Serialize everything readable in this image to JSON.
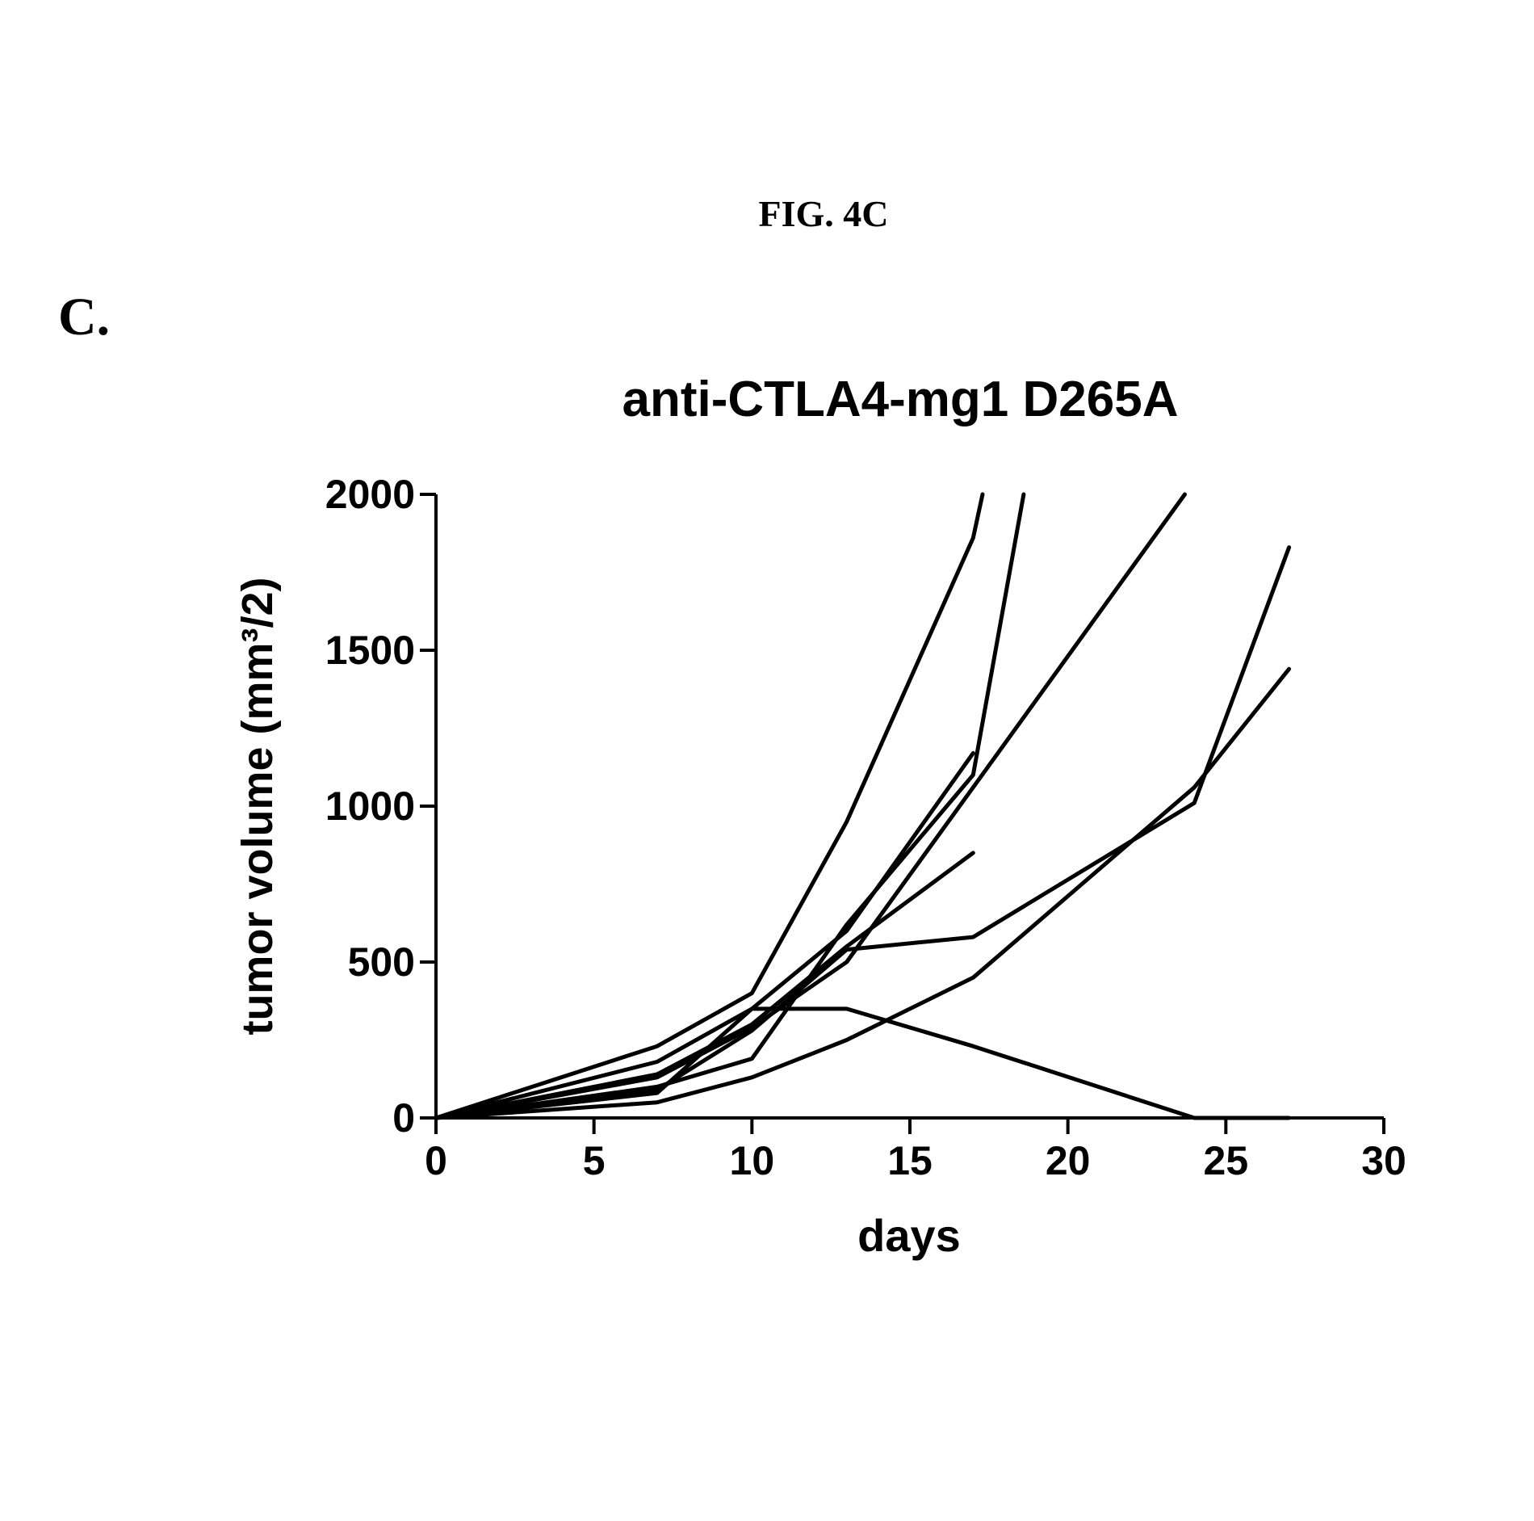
{
  "figure_label": "FIG. 4C",
  "panel_letter": "C.",
  "chart_data": {
    "type": "line",
    "title": "anti-CTLA4-mg1 D265A",
    "xlabel": "days",
    "ylabel": "tumor volume (mm³/2)",
    "xlim": [
      0,
      30
    ],
    "ylim": [
      0,
      2000
    ],
    "xticks": [
      0,
      5,
      10,
      15,
      20,
      25,
      30
    ],
    "yticks": [
      0,
      500,
      1000,
      1500,
      2000
    ],
    "grid": false,
    "line_color": "#000000",
    "series": [
      {
        "x": [
          0,
          7,
          10,
          13,
          17,
          17.3
        ],
        "y": [
          0,
          230,
          400,
          950,
          1860,
          2000
        ]
      },
      {
        "x": [
          0,
          7,
          10,
          13,
          17,
          18.6
        ],
        "y": [
          0,
          100,
          190,
          620,
          1100,
          2000
        ]
      },
      {
        "x": [
          0,
          7,
          10,
          13,
          17,
          23.7
        ],
        "y": [
          0,
          130,
          290,
          500,
          1060,
          2000
        ]
      },
      {
        "x": [
          0,
          7,
          10,
          13,
          17
        ],
        "y": [
          0,
          180,
          350,
          600,
          1170
        ]
      },
      {
        "x": [
          0,
          7,
          10,
          13,
          17
        ],
        "y": [
          0,
          140,
          300,
          550,
          850
        ]
      },
      {
        "x": [
          0,
          7,
          10,
          13,
          17,
          24,
          27
        ],
        "y": [
          0,
          90,
          280,
          540,
          580,
          1010,
          1830
        ]
      },
      {
        "x": [
          0,
          7,
          10,
          13,
          17,
          24,
          27
        ],
        "y": [
          0,
          50,
          130,
          250,
          450,
          1060,
          1440
        ]
      },
      {
        "x": [
          0,
          7,
          10,
          13,
          17,
          24,
          27
        ],
        "y": [
          0,
          80,
          350,
          350,
          230,
          0,
          0
        ]
      }
    ]
  }
}
